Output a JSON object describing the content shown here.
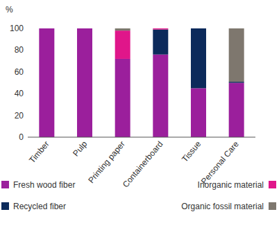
{
  "chart_data": {
    "type": "bar",
    "stacked": true,
    "y_label": "%",
    "categories": [
      "Timber",
      "Pulp",
      "Printing paper",
      "Containerboard",
      "Tissue",
      "Personal Care"
    ],
    "series": [
      {
        "name": "Fresh wood fiber",
        "color": "#9b1f9c",
        "values": [
          100,
          100,
          72,
          76,
          45,
          50
        ]
      },
      {
        "name": "Recycled fiber",
        "color": "#0c2a5b",
        "values": [
          0,
          0,
          0,
          23,
          55,
          1
        ]
      },
      {
        "name": "Inorganic material",
        "color": "#e0168a",
        "values": [
          0,
          0,
          26,
          1,
          0,
          0
        ]
      },
      {
        "name": "Organic fossil material",
        "color": "#7e776e",
        "values": [
          0,
          0,
          2,
          0,
          0,
          49
        ]
      }
    ],
    "ylim": [
      0,
      100
    ],
    "yticks": [
      0,
      20,
      40,
      60,
      80,
      100
    ],
    "grid": false,
    "legend": "bottom"
  }
}
